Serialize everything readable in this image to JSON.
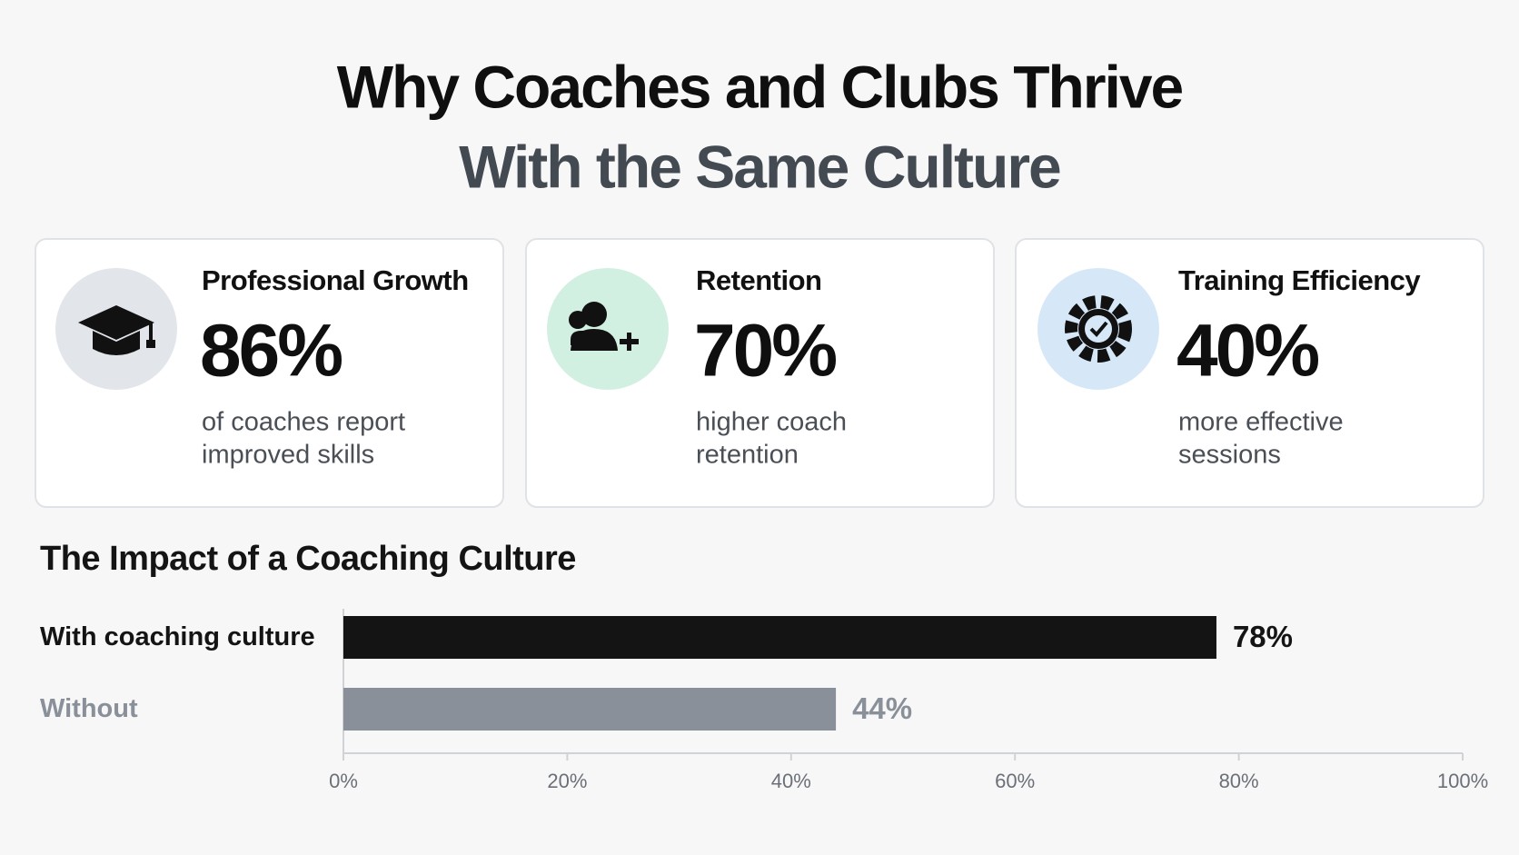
{
  "header": {
    "title_lines": [
      "Why Coaches and Clubs Thrive",
      "With the Same Culture"
    ]
  },
  "cards": [
    {
      "heading": "Professional Growth",
      "stat": "86%",
      "description_lines": [
        "of coaches report",
        "improved skills"
      ]
    },
    {
      "heading": "Retention",
      "stat": "70%",
      "description_lines": [
        "higher coach",
        "retention"
      ]
    },
    {
      "heading": "Training Efficiency",
      "stat": "40%",
      "description_lines": [
        "more effective",
        "sessions"
      ]
    }
  ],
  "chart_data": {
    "type": "hbar",
    "title": "The Impact of a Coaching Culture",
    "categories": [
      "With coaching culture",
      "Without"
    ],
    "values": [
      78,
      44
    ],
    "value_labels": [
      "78%",
      "44%"
    ],
    "colors": [
      "#141414",
      "#8a9099"
    ],
    "xlim": [
      0,
      100
    ],
    "xticks": [
      {
        "value": 0,
        "label": "0%"
      },
      {
        "value": 20,
        "label": "20%"
      },
      {
        "value": 40,
        "label": "40%"
      },
      {
        "value": 60,
        "label": "60%"
      },
      {
        "value": 80,
        "label": "80%"
      },
      {
        "value": 100,
        "label": "100%"
      }
    ]
  }
}
